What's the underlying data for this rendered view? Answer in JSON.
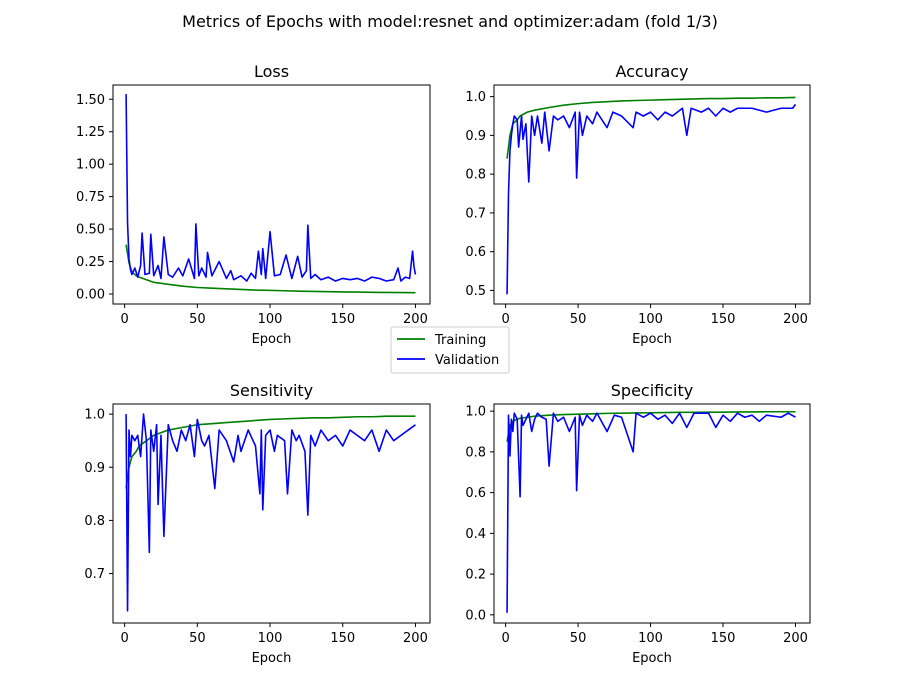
{
  "figure": {
    "title": "Metrics of Epochs with model:resnet and optimizer:adam (fold 1/3)"
  },
  "legend": {
    "items": [
      {
        "label": "Training",
        "color": "#008000"
      },
      {
        "label": "Validation",
        "color": "#0000ff"
      }
    ]
  },
  "colors": {
    "training": "#008000",
    "validation": "#0000ff",
    "axes": "#000000"
  },
  "chart_data": [
    {
      "type": "line",
      "title": "Loss",
      "xlabel": "Epoch",
      "ylabel": "",
      "xlim": [
        -8,
        210
      ],
      "ylim": [
        -0.077,
        1.61
      ],
      "xticks": [
        0,
        50,
        100,
        150,
        200
      ],
      "xtick_labels": [
        "0",
        "50",
        "100",
        "150",
        "200"
      ],
      "yticks": [
        0.0,
        0.25,
        0.5,
        0.75,
        1.0,
        1.25,
        1.5
      ],
      "ytick_labels": [
        "0.00",
        "0.25",
        "0.50",
        "0.75",
        "1.00",
        "1.25",
        "1.50"
      ],
      "series": [
        {
          "name": "Training",
          "color": "#008000",
          "x": [
            1,
            3,
            5,
            8,
            10,
            15,
            20,
            30,
            40,
            50,
            60,
            70,
            80,
            90,
            100,
            110,
            120,
            130,
            140,
            150,
            160,
            170,
            180,
            190,
            200
          ],
          "y": [
            0.38,
            0.24,
            0.17,
            0.14,
            0.13,
            0.11,
            0.09,
            0.075,
            0.06,
            0.05,
            0.045,
            0.04,
            0.035,
            0.03,
            0.028,
            0.025,
            0.022,
            0.02,
            0.018,
            0.016,
            0.015,
            0.013,
            0.012,
            0.011,
            0.01
          ]
        },
        {
          "name": "Validation",
          "color": "#0000ff",
          "x": [
            1,
            2,
            3,
            4,
            5,
            7,
            9,
            11,
            12,
            14,
            17,
            18,
            20,
            23,
            25,
            27,
            30,
            33,
            37,
            40,
            44,
            48,
            49,
            51,
            53,
            56,
            57,
            60,
            65,
            70,
            73,
            75,
            80,
            84,
            87,
            90,
            92,
            94,
            95,
            97,
            100,
            103,
            107,
            111,
            115,
            119,
            122,
            125,
            126,
            128,
            131,
            135,
            140,
            145,
            150,
            155,
            160,
            165,
            170,
            175,
            180,
            185,
            188,
            190,
            193,
            196,
            198,
            199,
            200
          ],
          "y": [
            1.54,
            0.55,
            0.27,
            0.19,
            0.15,
            0.2,
            0.13,
            0.22,
            0.47,
            0.15,
            0.16,
            0.46,
            0.14,
            0.22,
            0.12,
            0.44,
            0.15,
            0.13,
            0.2,
            0.14,
            0.27,
            0.12,
            0.54,
            0.14,
            0.2,
            0.13,
            0.32,
            0.14,
            0.25,
            0.12,
            0.18,
            0.11,
            0.14,
            0.1,
            0.16,
            0.12,
            0.33,
            0.15,
            0.35,
            0.12,
            0.48,
            0.14,
            0.15,
            0.3,
            0.12,
            0.29,
            0.13,
            0.18,
            0.53,
            0.12,
            0.15,
            0.11,
            0.13,
            0.1,
            0.12,
            0.11,
            0.12,
            0.1,
            0.13,
            0.12,
            0.1,
            0.11,
            0.2,
            0.1,
            0.13,
            0.12,
            0.33,
            0.21,
            0.15
          ]
        }
      ]
    },
    {
      "type": "line",
      "title": "Accuracy",
      "xlabel": "Epoch",
      "ylabel": "",
      "xlim": [
        -8,
        210
      ],
      "ylim": [
        0.465,
        1.03
      ],
      "xticks": [
        0,
        50,
        100,
        150,
        200
      ],
      "xtick_labels": [
        "0",
        "50",
        "100",
        "150",
        "200"
      ],
      "yticks": [
        0.5,
        0.6,
        0.7,
        0.8,
        0.9,
        1.0
      ],
      "ytick_labels": [
        "0.5",
        "0.6",
        "0.7",
        "0.8",
        "0.9",
        "1.0"
      ],
      "series": [
        {
          "name": "Training",
          "color": "#008000",
          "x": [
            1,
            3,
            5,
            8,
            10,
            15,
            20,
            30,
            40,
            50,
            60,
            70,
            80,
            90,
            100,
            110,
            120,
            130,
            140,
            150,
            160,
            170,
            180,
            190,
            200
          ],
          "y": [
            0.84,
            0.9,
            0.93,
            0.94,
            0.95,
            0.96,
            0.965,
            0.972,
            0.978,
            0.982,
            0.985,
            0.987,
            0.989,
            0.99,
            0.991,
            0.992,
            0.993,
            0.994,
            0.995,
            0.995,
            0.996,
            0.996,
            0.997,
            0.997,
            0.998
          ]
        },
        {
          "name": "Validation",
          "color": "#0000ff",
          "x": [
            1,
            2,
            3,
            4,
            5,
            6,
            8,
            9,
            11,
            12,
            14,
            16,
            18,
            20,
            22,
            25,
            27,
            30,
            33,
            36,
            40,
            44,
            48,
            49,
            51,
            53,
            56,
            60,
            63,
            70,
            74,
            80,
            88,
            90,
            95,
            100,
            105,
            110,
            115,
            122,
            125,
            128,
            135,
            140,
            145,
            150,
            155,
            160,
            170,
            180,
            190,
            195,
            198,
            200
          ],
          "y": [
            0.49,
            0.75,
            0.86,
            0.9,
            0.93,
            0.95,
            0.94,
            0.87,
            0.95,
            0.89,
            0.93,
            0.78,
            0.95,
            0.9,
            0.95,
            0.88,
            0.96,
            0.86,
            0.95,
            0.94,
            0.95,
            0.92,
            0.96,
            0.79,
            0.96,
            0.9,
            0.95,
            0.93,
            0.96,
            0.92,
            0.96,
            0.95,
            0.92,
            0.96,
            0.95,
            0.96,
            0.94,
            0.96,
            0.95,
            0.97,
            0.9,
            0.97,
            0.96,
            0.97,
            0.95,
            0.97,
            0.96,
            0.97,
            0.97,
            0.96,
            0.97,
            0.97,
            0.97,
            0.98
          ]
        }
      ]
    },
    {
      "type": "line",
      "title": "Sensitivity",
      "xlabel": "Epoch",
      "ylabel": "",
      "xlim": [
        -8,
        210
      ],
      "ylim": [
        0.607,
        1.019
      ],
      "xticks": [
        0,
        50,
        100,
        150,
        200
      ],
      "xtick_labels": [
        "0",
        "50",
        "100",
        "150",
        "200"
      ],
      "yticks": [
        0.7,
        0.8,
        0.9,
        1.0
      ],
      "ytick_labels": [
        "0.7",
        "0.8",
        "0.9",
        "1.0"
      ],
      "series": [
        {
          "name": "Training",
          "color": "#008000",
          "x": [
            1,
            3,
            5,
            8,
            10,
            15,
            20,
            30,
            40,
            50,
            60,
            70,
            80,
            90,
            100,
            110,
            120,
            130,
            140,
            150,
            160,
            170,
            180,
            190,
            200
          ],
          "y": [
            0.86,
            0.9,
            0.92,
            0.93,
            0.94,
            0.95,
            0.96,
            0.97,
            0.975,
            0.98,
            0.982,
            0.984,
            0.986,
            0.988,
            0.99,
            0.991,
            0.992,
            0.993,
            0.993,
            0.994,
            0.995,
            0.995,
            0.996,
            0.996,
            0.996
          ]
        },
        {
          "name": "Validation",
          "color": "#0000ff",
          "x": [
            1,
            2,
            3,
            4,
            5,
            7,
            9,
            11,
            13,
            15,
            17,
            18,
            20,
            22,
            23,
            25,
            27,
            30,
            33,
            36,
            39,
            42,
            45,
            48,
            50,
            53,
            55,
            58,
            62,
            65,
            70,
            75,
            78,
            80,
            85,
            90,
            93,
            94,
            95,
            97,
            100,
            103,
            105,
            110,
            112,
            115,
            118,
            120,
            124,
            126,
            128,
            131,
            135,
            140,
            145,
            150,
            155,
            160,
            165,
            170,
            175,
            180,
            185,
            190,
            195,
            200
          ],
          "y": [
            1.0,
            0.63,
            0.97,
            0.92,
            0.96,
            0.95,
            0.96,
            0.92,
            1.0,
            0.95,
            0.74,
            0.97,
            0.93,
            0.98,
            0.83,
            0.96,
            0.77,
            0.98,
            0.95,
            0.93,
            0.97,
            0.95,
            0.98,
            0.92,
            0.99,
            0.95,
            0.94,
            0.96,
            0.86,
            0.97,
            0.95,
            0.91,
            0.96,
            0.93,
            0.97,
            0.94,
            0.85,
            0.97,
            0.82,
            0.96,
            0.97,
            0.93,
            0.96,
            0.95,
            0.85,
            0.97,
            0.95,
            0.96,
            0.93,
            0.81,
            0.96,
            0.94,
            0.97,
            0.95,
            0.96,
            0.94,
            0.97,
            0.96,
            0.95,
            0.97,
            0.93,
            0.97,
            0.95,
            0.96,
            0.97,
            0.98
          ]
        }
      ]
    },
    {
      "type": "line",
      "title": "Specificity",
      "xlabel": "Epoch",
      "ylabel": "",
      "xlim": [
        -8,
        210
      ],
      "ylim": [
        -0.04,
        1.035
      ],
      "xticks": [
        0,
        50,
        100,
        150,
        200
      ],
      "xtick_labels": [
        "0",
        "50",
        "100",
        "150",
        "200"
      ],
      "yticks": [
        0.0,
        0.2,
        0.4,
        0.6,
        0.8,
        1.0
      ],
      "ytick_labels": [
        "0.0",
        "0.2",
        "0.4",
        "0.6",
        "0.8",
        "1.0"
      ],
      "series": [
        {
          "name": "Training",
          "color": "#008000",
          "x": [
            1,
            3,
            5,
            8,
            10,
            15,
            20,
            30,
            40,
            50,
            60,
            70,
            80,
            90,
            100,
            110,
            120,
            130,
            140,
            150,
            160,
            170,
            180,
            190,
            200
          ],
          "y": [
            0.85,
            0.93,
            0.95,
            0.96,
            0.965,
            0.97,
            0.975,
            0.98,
            0.983,
            0.985,
            0.987,
            0.989,
            0.99,
            0.991,
            0.992,
            0.993,
            0.994,
            0.994,
            0.995,
            0.995,
            0.996,
            0.996,
            0.997,
            0.997,
            0.997
          ]
        },
        {
          "name": "Validation",
          "color": "#0000ff",
          "x": [
            1,
            2,
            3,
            4,
            5,
            6,
            8,
            10,
            11,
            12,
            14,
            16,
            18,
            20,
            22,
            25,
            28,
            30,
            33,
            36,
            40,
            44,
            48,
            49,
            51,
            53,
            56,
            60,
            63,
            70,
            75,
            80,
            88,
            90,
            95,
            100,
            105,
            110,
            115,
            120,
            125,
            130,
            140,
            145,
            150,
            155,
            160,
            165,
            170,
            175,
            180,
            190,
            195,
            200
          ],
          "y": [
            0.01,
            0.98,
            0.78,
            0.96,
            0.9,
            0.99,
            0.96,
            0.58,
            0.98,
            0.93,
            0.96,
            0.99,
            0.9,
            0.96,
            0.99,
            0.97,
            0.96,
            0.73,
            0.99,
            0.95,
            0.97,
            0.9,
            0.97,
            0.61,
            0.98,
            0.93,
            0.98,
            0.95,
            0.99,
            0.9,
            0.98,
            0.97,
            0.8,
            0.99,
            0.97,
            0.99,
            0.96,
            0.98,
            0.94,
            0.99,
            0.92,
            0.99,
            0.99,
            0.92,
            0.98,
            0.95,
            0.99,
            0.97,
            0.98,
            0.95,
            0.98,
            0.97,
            0.99,
            0.97
          ]
        }
      ]
    }
  ]
}
